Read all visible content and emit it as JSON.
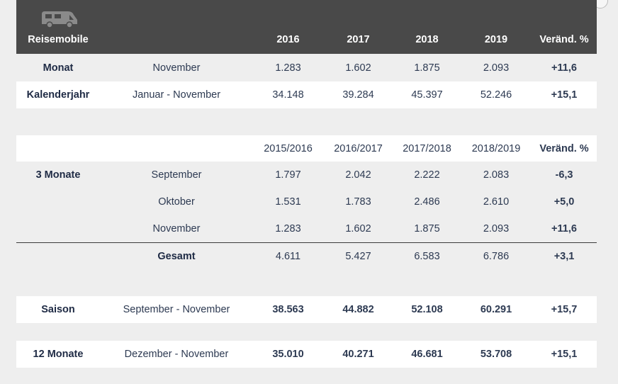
{
  "header": {
    "title": "Reisemobile",
    "icon": "motorhome-icon",
    "columns": [
      "2016",
      "2017",
      "2018",
      "2019",
      "Veränd. %"
    ]
  },
  "section1": {
    "rows": [
      {
        "label": "Monat",
        "period": "November",
        "values": [
          "1.283",
          "1.602",
          "1.875",
          "2.093"
        ],
        "change": "+11,6"
      },
      {
        "label": "Kalenderjahr",
        "period": "Januar - November",
        "values": [
          "34.148",
          "39.284",
          "45.397",
          "52.246"
        ],
        "change": "+15,1"
      }
    ]
  },
  "section2": {
    "columns": [
      "2015/2016",
      "2016/2017",
      "2017/2018",
      "2018/2019",
      "Veränd. %"
    ],
    "rows": [
      {
        "label": "3 Monate",
        "period": "September",
        "values": [
          "1.797",
          "2.042",
          "2.222",
          "2.083"
        ],
        "change": "-6,3"
      },
      {
        "label": "",
        "period": "Oktober",
        "values": [
          "1.531",
          "1.783",
          "2.486",
          "2.610"
        ],
        "change": "+5,0"
      },
      {
        "label": "",
        "period": "November",
        "values": [
          "1.283",
          "1.602",
          "1.875",
          "2.093"
        ],
        "change": "+11,6"
      }
    ],
    "total": {
      "label": "Gesamt",
      "values": [
        "4.611",
        "5.427",
        "6.583",
        "6.786"
      ],
      "change": "+3,1"
    }
  },
  "saison": {
    "label": "Saison",
    "period": "September - November",
    "values": [
      "38.563",
      "44.882",
      "52.108",
      "60.291"
    ],
    "change": "+15,7"
  },
  "zwoelf": {
    "label": "12 Monate",
    "period": "Dezember - November",
    "values": [
      "35.010",
      "40.271",
      "46.681",
      "53.708"
    ],
    "change": "+15,1"
  }
}
